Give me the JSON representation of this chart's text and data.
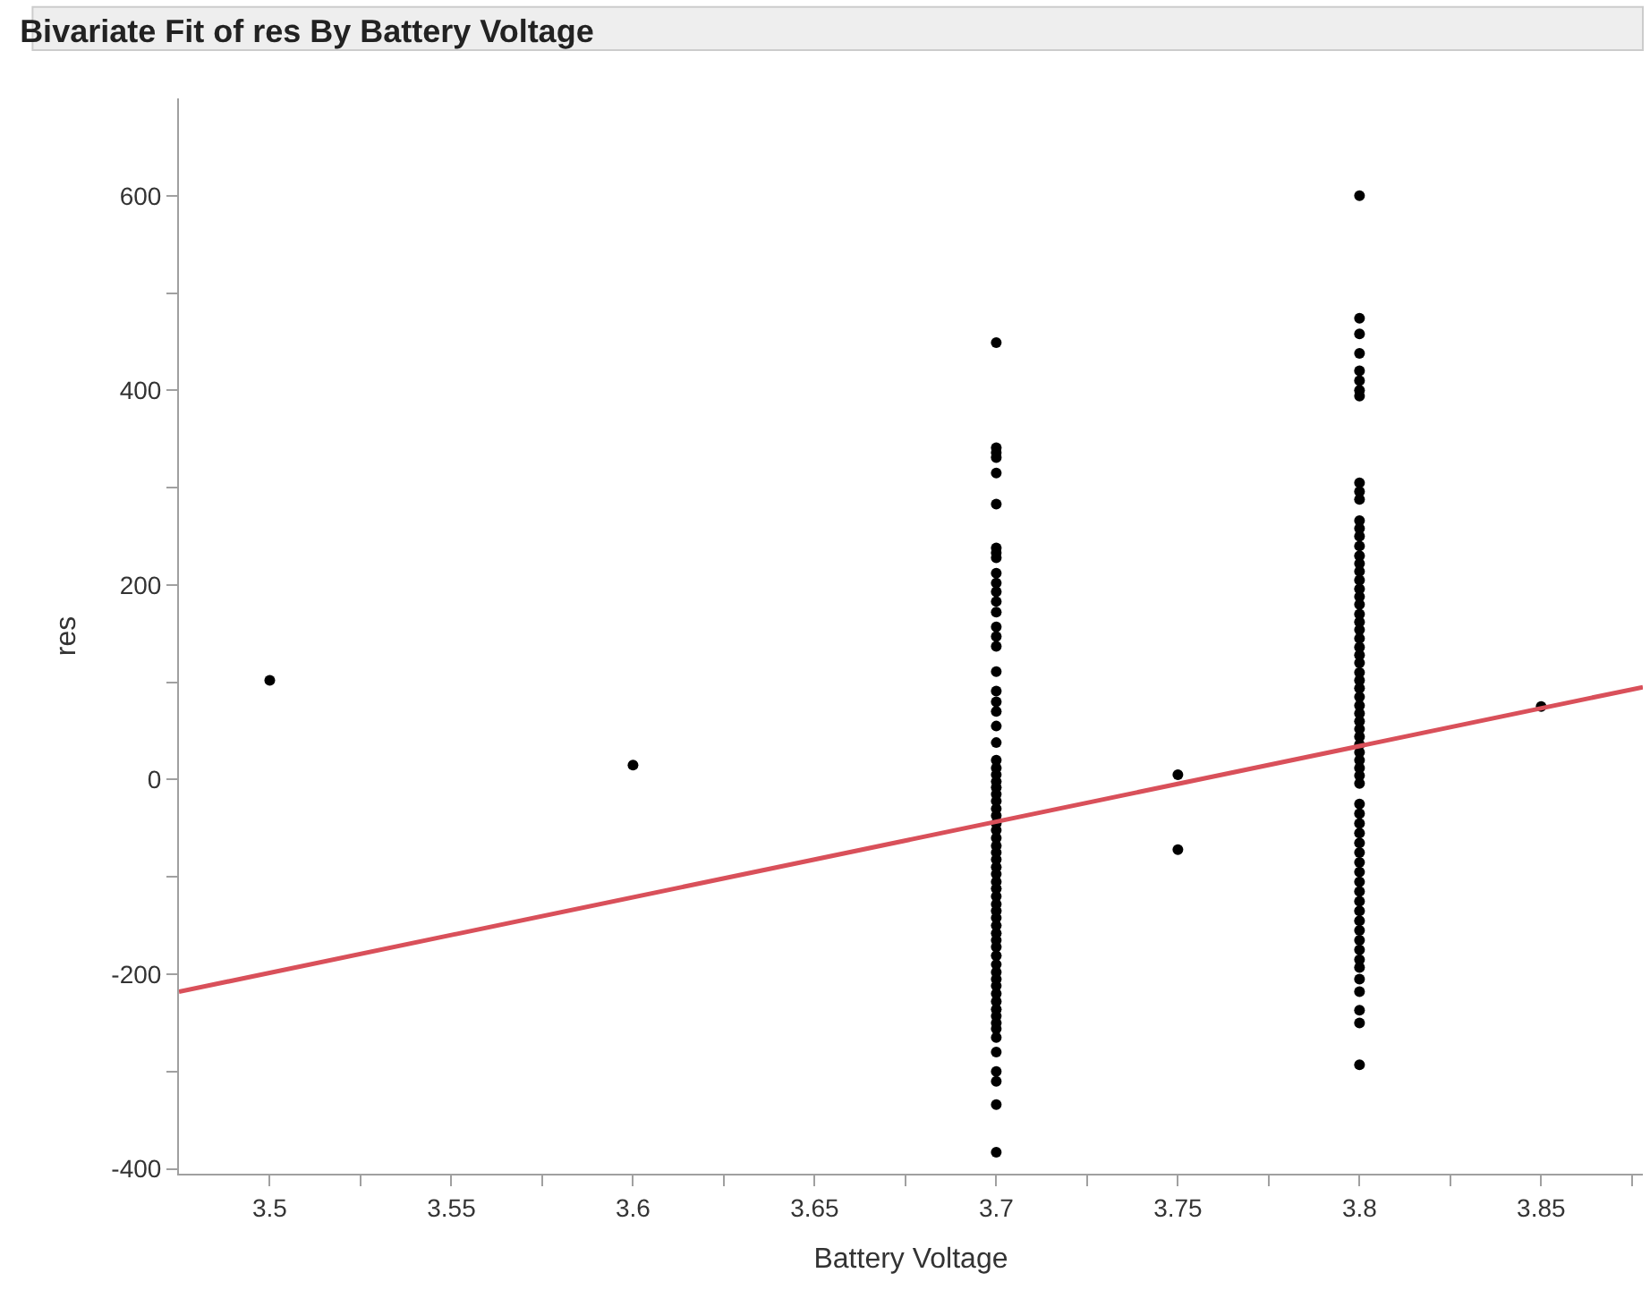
{
  "chart_data": {
    "type": "scatter",
    "title": "Bivariate Fit of res By Battery Voltage",
    "xlabel": "Battery Voltage",
    "ylabel": "res",
    "xlim": [
      3.475,
      3.878
    ],
    "ylim": [
      -405,
      700
    ],
    "xticks": [
      3.5,
      3.55,
      3.6,
      3.65,
      3.7,
      3.75,
      3.8,
      3.85,
      {
        "value": 3.525,
        "label": null
      },
      {
        "value": 3.575,
        "label": null
      },
      {
        "value": 3.625,
        "label": null
      },
      {
        "value": 3.675,
        "label": null
      },
      {
        "value": 3.725,
        "label": null
      },
      {
        "value": 3.775,
        "label": null
      },
      {
        "value": 3.825,
        "label": null
      },
      {
        "value": 3.875,
        "label": null
      }
    ],
    "yticks": [
      -400,
      -200,
      0,
      200,
      400,
      600,
      {
        "value": -300,
        "label": null
      },
      {
        "value": -100,
        "label": null
      },
      {
        "value": 100,
        "label": null
      },
      {
        "value": 300,
        "label": null
      },
      {
        "value": 500,
        "label": null
      }
    ],
    "marker": "circle",
    "series": [
      {
        "color": "#000000",
        "x": [
          3.5,
          3.6,
          3.75,
          3.75,
          3.85
        ],
        "values": [
          102,
          15,
          5,
          -72,
          75
        ]
      },
      {
        "color": "#000000",
        "x": [
          3.7,
          3.7,
          3.7,
          3.7,
          3.7,
          3.7,
          3.7,
          3.7,
          3.7,
          3.7,
          3.7,
          3.7,
          3.7,
          3.7,
          3.7,
          3.7,
          3.7,
          3.7,
          3.7,
          3.7,
          3.7,
          3.7,
          3.7,
          3.7,
          3.7,
          3.7,
          3.7,
          3.7,
          3.7,
          3.7,
          3.7,
          3.7,
          3.7,
          3.7,
          3.7,
          3.7,
          3.7,
          3.7,
          3.7,
          3.7,
          3.7,
          3.7,
          3.7,
          3.7,
          3.7,
          3.7,
          3.7,
          3.7,
          3.7,
          3.7,
          3.7,
          3.7,
          3.7,
          3.7,
          3.7,
          3.7,
          3.7,
          3.7,
          3.7,
          3.7,
          3.7,
          3.7,
          3.7,
          3.7,
          3.7,
          3.7,
          3.7
        ],
        "values": [
          449,
          341,
          336,
          331,
          315,
          283,
          238,
          233,
          228,
          212,
          202,
          193,
          183,
          172,
          157,
          147,
          137,
          111,
          91,
          80,
          70,
          55,
          38,
          20,
          12,
          5,
          -2,
          -8,
          -15,
          -22,
          -30,
          -37,
          -45,
          -52,
          -60,
          -68,
          -75,
          -82,
          -90,
          -97,
          -105,
          -112,
          -120,
          -128,
          -135,
          -142,
          -150,
          -158,
          -165,
          -172,
          -181,
          -190,
          -198,
          -205,
          -212,
          -220,
          -228,
          -236,
          -243,
          -250,
          -256,
          -265,
          -280,
          -300,
          -310,
          -334,
          -383
        ]
      },
      {
        "color": "#000000",
        "x": [
          3.8,
          3.8,
          3.8,
          3.8,
          3.8,
          3.8,
          3.8,
          3.8,
          3.8,
          3.8,
          3.8,
          3.8,
          3.8,
          3.8,
          3.8,
          3.8,
          3.8,
          3.8,
          3.8,
          3.8,
          3.8,
          3.8,
          3.8,
          3.8,
          3.8,
          3.8,
          3.8,
          3.8,
          3.8,
          3.8,
          3.8,
          3.8,
          3.8,
          3.8,
          3.8,
          3.8,
          3.8,
          3.8,
          3.8,
          3.8,
          3.8,
          3.8,
          3.8,
          3.8,
          3.8,
          3.8,
          3.8,
          3.8,
          3.8,
          3.8,
          3.8,
          3.8,
          3.8,
          3.8,
          3.8,
          3.8,
          3.8,
          3.8,
          3.8,
          3.8,
          3.8,
          3.8,
          3.8,
          3.8,
          3.8,
          3.8,
          3.8
        ],
        "values": [
          600,
          474,
          458,
          438,
          420,
          410,
          400,
          394,
          305,
          296,
          288,
          266,
          258,
          250,
          240,
          230,
          222,
          214,
          205,
          196,
          188,
          180,
          170,
          162,
          154,
          145,
          136,
          128,
          120,
          110,
          102,
          94,
          85,
          76,
          68,
          60,
          52,
          44,
          36,
          28,
          20,
          12,
          4,
          -4,
          -25,
          -35,
          -45,
          -55,
          -65,
          -75,
          -85,
          -95,
          -105,
          -115,
          -125,
          -135,
          -145,
          -155,
          -165,
          -175,
          -185,
          -193,
          -205,
          -218,
          -237,
          -250,
          -293
        ]
      },
      {
        "type": "line",
        "color": "#d9505a",
        "line_style": "solid",
        "marker": "none",
        "x": [
          3.475,
          3.878
        ],
        "values": [
          -218,
          95
        ]
      }
    ]
  }
}
